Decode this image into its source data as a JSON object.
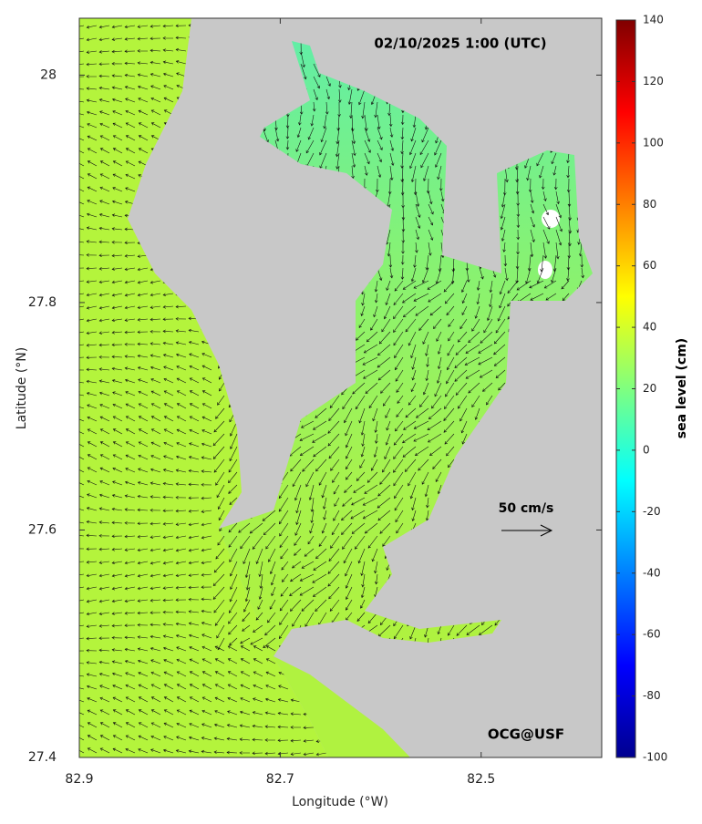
{
  "chart_data": {
    "type": "map",
    "title": "02/10/2025 1:00 (UTC)",
    "xlabel": "Longitude (°W)",
    "ylabel": "Latitude (°N)",
    "xlim": [
      82.9,
      82.38
    ],
    "ylim": [
      27.4,
      28.05
    ],
    "xticks": [
      82.9,
      82.7,
      82.5
    ],
    "yticks": [
      27.4,
      27.6,
      27.8,
      28
    ],
    "colorbar": {
      "label": "sea level (cm)",
      "lim": [
        -100,
        140
      ],
      "ticks": [
        140,
        120,
        100,
        80,
        60,
        40,
        20,
        0,
        -20,
        -40,
        -60,
        -80,
        -100
      ],
      "colormap": "jet"
    },
    "annotations": [
      "50 cm/s",
      "OCG@USF"
    ]
  }
}
